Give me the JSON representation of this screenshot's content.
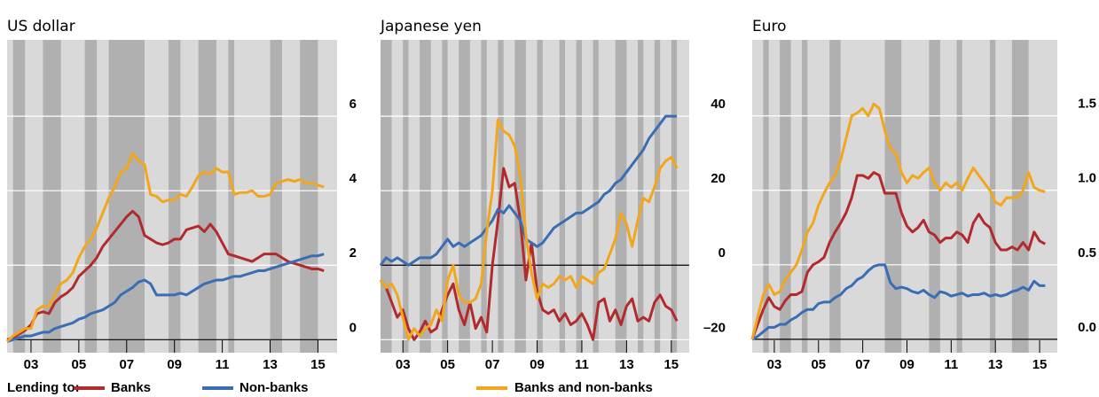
{
  "legend_title": "Lending to:",
  "chart_data": [
    {
      "type": "line",
      "title": "US dollar",
      "x": [
        2002,
        2002.25,
        2002.5,
        2002.75,
        2003,
        2003.25,
        2003.5,
        2003.75,
        2004,
        2004.25,
        2004.5,
        2004.75,
        2005,
        2005.25,
        2005.5,
        2005.75,
        2006,
        2006.25,
        2006.5,
        2006.75,
        2007,
        2007.25,
        2007.5,
        2007.75,
        2008,
        2008.25,
        2008.5,
        2008.75,
        2009,
        2009.25,
        2009.5,
        2009.75,
        2010,
        2010.25,
        2010.5,
        2010.75,
        2011,
        2011.25,
        2011.5,
        2011.75,
        2012,
        2012.25,
        2012.5,
        2012.75,
        2013,
        2013.25,
        2013.5,
        2013.75,
        2014,
        2014.25,
        2014.5,
        2014.75,
        2015,
        2015.25
      ],
      "series": [
        {
          "name": "Banks",
          "color": "#b22a2e",
          "values": [
            0,
            0.05,
            0.15,
            0.25,
            0.4,
            0.7,
            0.75,
            0.7,
            1.0,
            1.15,
            1.25,
            1.4,
            1.7,
            1.85,
            2.0,
            2.2,
            2.5,
            2.7,
            2.9,
            3.1,
            3.3,
            3.45,
            3.3,
            2.8,
            2.7,
            2.6,
            2.55,
            2.6,
            2.7,
            2.7,
            2.95,
            3.0,
            3.05,
            2.9,
            3.1,
            2.9,
            2.6,
            2.3,
            2.25,
            2.2,
            2.15,
            2.1,
            2.2,
            2.3,
            2.3,
            2.3,
            2.2,
            2.1,
            2.05,
            2.0,
            1.95,
            1.9,
            1.9,
            1.85
          ]
        },
        {
          "name": "Non-banks",
          "color": "#3a6db3",
          "values": [
            -0.05,
            0,
            0.05,
            0.1,
            0.1,
            0.15,
            0.2,
            0.2,
            0.3,
            0.35,
            0.4,
            0.45,
            0.55,
            0.6,
            0.7,
            0.75,
            0.8,
            0.9,
            1.0,
            1.2,
            1.3,
            1.4,
            1.55,
            1.6,
            1.5,
            1.2,
            1.2,
            1.2,
            1.2,
            1.25,
            1.2,
            1.3,
            1.4,
            1.5,
            1.55,
            1.6,
            1.6,
            1.65,
            1.7,
            1.7,
            1.75,
            1.8,
            1.85,
            1.85,
            1.9,
            1.95,
            2.0,
            2.05,
            2.1,
            2.15,
            2.2,
            2.25,
            2.25,
            2.3
          ]
        },
        {
          "name": "Banks and non-banks",
          "color": "#f2a61c",
          "values": [
            -0.05,
            0.1,
            0.2,
            0.3,
            0.3,
            0.8,
            0.9,
            0.9,
            1.2,
            1.5,
            1.6,
            1.8,
            2.2,
            2.5,
            2.7,
            3.0,
            3.4,
            3.8,
            4.1,
            4.5,
            4.6,
            5.0,
            4.8,
            4.7,
            3.9,
            3.85,
            3.7,
            3.75,
            3.75,
            3.9,
            3.85,
            4.1,
            4.4,
            4.5,
            4.45,
            4.6,
            4.5,
            4.5,
            3.9,
            3.95,
            3.95,
            4.0,
            3.85,
            3.85,
            3.9,
            4.2,
            4.25,
            4.3,
            4.25,
            4.3,
            4.2,
            4.2,
            4.15,
            4.1
          ]
        }
      ],
      "xlim": [
        2002,
        2015.8
      ],
      "xticks": [
        {
          "value": 2003,
          "label": "03"
        },
        {
          "value": 2005,
          "label": "05"
        },
        {
          "value": 2007,
          "label": "07"
        },
        {
          "value": 2009,
          "label": "09"
        },
        {
          "value": 2011,
          "label": "11"
        },
        {
          "value": 2013,
          "label": "13"
        },
        {
          "value": 2015,
          "label": "15"
        }
      ],
      "ylim": [
        -0.35,
        8.05
      ],
      "yticks": [
        0,
        2,
        4,
        6
      ],
      "grid": true,
      "shaded": [
        [
          2002.25,
          2002.75
        ],
        [
          2003.5,
          2004.25
        ],
        [
          2005.25,
          2005.75
        ],
        [
          2006.25,
          2007.75
        ],
        [
          2008.75,
          2009.25
        ],
        [
          2010,
          2010.75
        ],
        [
          2011.25,
          2011.5
        ],
        [
          2013,
          2013.5
        ],
        [
          2014.25,
          2015
        ]
      ]
    },
    {
      "type": "line",
      "title": "Japanese yen",
      "x": [
        2002,
        2002.25,
        2002.5,
        2002.75,
        2003,
        2003.25,
        2003.5,
        2003.75,
        2004,
        2004.25,
        2004.5,
        2004.75,
        2005,
        2005.25,
        2005.5,
        2005.75,
        2006,
        2006.25,
        2006.5,
        2006.75,
        2007,
        2007.25,
        2007.5,
        2007.75,
        2008,
        2008.25,
        2008.5,
        2008.75,
        2009,
        2009.25,
        2009.5,
        2009.75,
        2010,
        2010.25,
        2010.5,
        2010.75,
        2011,
        2011.25,
        2011.5,
        2011.75,
        2012,
        2012.25,
        2012.5,
        2012.75,
        2013,
        2013.25,
        2013.5,
        2013.75,
        2014,
        2014.25,
        2014.5,
        2014.75,
        2015,
        2015.25
      ],
      "series": [
        {
          "name": "Banks",
          "color": "#b22a2e",
          "values": [
            -4,
            -6,
            -10,
            -14,
            -12,
            -17,
            -20,
            -18,
            -15,
            -18,
            -17,
            -12,
            -8,
            -5,
            -12,
            -16,
            -10,
            -17,
            -14,
            -18,
            0,
            12,
            26,
            21,
            22,
            12,
            -4,
            6,
            -7,
            -12,
            -13,
            -12,
            -15,
            -13,
            -16,
            -15,
            -13,
            -16,
            -20,
            -10,
            -9,
            -15,
            -12,
            -16,
            -11,
            -9,
            -15,
            -14,
            -15,
            -10,
            -8,
            -11,
            -12,
            -15
          ]
        },
        {
          "name": "Non-banks",
          "color": "#3a6db3",
          "values": [
            0,
            2,
            1,
            2,
            1,
            0,
            1,
            2,
            2,
            2,
            3,
            5,
            7,
            5,
            6,
            5,
            6,
            7,
            8,
            10,
            12,
            15,
            14,
            16,
            14,
            12,
            7,
            6,
            5,
            6,
            8,
            10,
            11,
            12,
            13,
            14,
            14,
            15,
            16,
            17,
            19,
            20,
            22,
            23,
            25,
            27,
            29,
            31,
            34,
            36,
            38,
            40,
            40,
            40
          ]
        },
        {
          "name": "Banks and non-banks",
          "color": "#f2a61c",
          "values": [
            -4,
            -6,
            -5,
            -8,
            -14,
            -20,
            -17,
            -19,
            -17,
            -16,
            -12,
            -15,
            -4,
            0,
            -8,
            -10,
            -10,
            -9,
            -5,
            9,
            20,
            39,
            36,
            35,
            32,
            24,
            8,
            -2,
            -9,
            -5,
            -6,
            -5,
            -3,
            -4,
            -3,
            -6,
            -3,
            -4,
            -5,
            -2,
            -1,
            3,
            7,
            14,
            11,
            5,
            12,
            18,
            17,
            21,
            26,
            28,
            29,
            26
          ]
        }
      ],
      "xlim": [
        2002,
        2015.8
      ],
      "xticks": [
        {
          "value": 2003,
          "label": "03"
        },
        {
          "value": 2005,
          "label": "05"
        },
        {
          "value": 2007,
          "label": "07"
        },
        {
          "value": 2009,
          "label": "09"
        },
        {
          "value": 2011,
          "label": "11"
        },
        {
          "value": 2013,
          "label": "13"
        },
        {
          "value": 2015,
          "label": "15"
        }
      ],
      "ylim": [
        -23.5,
        60.5
      ],
      "yticks": [
        {
          "value": -20,
          "label": "–20"
        },
        0,
        20,
        40
      ],
      "grid": true,
      "shaded": [
        [
          2002,
          2002.5
        ],
        [
          2003,
          2003.25
        ],
        [
          2003.75,
          2004.25
        ],
        [
          2004.75,
          2005
        ],
        [
          2005.5,
          2006
        ],
        [
          2006.5,
          2006.75
        ],
        [
          2007.25,
          2007.5
        ],
        [
          2008,
          2008.5
        ],
        [
          2009,
          2009.25
        ],
        [
          2010,
          2010.25
        ],
        [
          2010.75,
          2011
        ],
        [
          2011.5,
          2011.75
        ],
        [
          2012.5,
          2013
        ],
        [
          2013.5,
          2013.75
        ],
        [
          2014.25,
          2014.5
        ],
        [
          2015,
          2015.25
        ]
      ]
    },
    {
      "type": "line",
      "title": "Euro",
      "x": [
        2002,
        2002.25,
        2002.5,
        2002.75,
        2003,
        2003.25,
        2003.5,
        2003.75,
        2004,
        2004.25,
        2004.5,
        2004.75,
        2005,
        2005.25,
        2005.5,
        2005.75,
        2006,
        2006.25,
        2006.5,
        2006.75,
        2007,
        2007.25,
        2007.5,
        2007.75,
        2008,
        2008.25,
        2008.5,
        2008.75,
        2009,
        2009.25,
        2009.5,
        2009.75,
        2010,
        2010.25,
        2010.5,
        2010.75,
        2011,
        2011.25,
        2011.5,
        2011.75,
        2012,
        2012.25,
        2012.5,
        2012.75,
        2013,
        2013.25,
        2013.5,
        2013.75,
        2014,
        2014.25,
        2014.5,
        2014.75,
        2015,
        2015.25
      ],
      "series": [
        {
          "name": "Banks",
          "color": "#b22a2e",
          "values": [
            0,
            0.1,
            0.2,
            0.28,
            0.22,
            0.2,
            0.26,
            0.3,
            0.3,
            0.32,
            0.45,
            0.5,
            0.52,
            0.55,
            0.65,
            0.72,
            0.78,
            0.85,
            0.95,
            1.1,
            1.1,
            1.08,
            1.12,
            1.1,
            0.98,
            0.98,
            0.98,
            0.85,
            0.76,
            0.72,
            0.75,
            0.8,
            0.72,
            0.7,
            0.65,
            0.68,
            0.68,
            0.72,
            0.7,
            0.65,
            0.78,
            0.84,
            0.78,
            0.75,
            0.65,
            0.6,
            0.6,
            0.62,
            0.6,
            0.65,
            0.6,
            0.72,
            0.66,
            0.64
          ]
        },
        {
          "name": "Non-banks",
          "color": "#3a6db3",
          "values": [
            0,
            0.02,
            0.05,
            0.08,
            0.08,
            0.1,
            0.1,
            0.13,
            0.15,
            0.18,
            0.2,
            0.2,
            0.24,
            0.25,
            0.25,
            0.28,
            0.3,
            0.34,
            0.36,
            0.4,
            0.42,
            0.46,
            0.49,
            0.5,
            0.5,
            0.38,
            0.34,
            0.35,
            0.34,
            0.32,
            0.31,
            0.33,
            0.3,
            0.28,
            0.32,
            0.31,
            0.29,
            0.3,
            0.31,
            0.29,
            0.3,
            0.3,
            0.31,
            0.29,
            0.3,
            0.29,
            0.3,
            0.32,
            0.33,
            0.35,
            0.33,
            0.39,
            0.36,
            0.36
          ]
        },
        {
          "name": "Banks and non-banks",
          "color": "#f2a61c",
          "values": [
            0,
            0.15,
            0.3,
            0.37,
            0.3,
            0.32,
            0.4,
            0.45,
            0.5,
            0.6,
            0.72,
            0.78,
            0.9,
            0.98,
            1.05,
            1.1,
            1.2,
            1.35,
            1.5,
            1.52,
            1.55,
            1.5,
            1.58,
            1.55,
            1.4,
            1.28,
            1.25,
            1.12,
            1.05,
            1.1,
            1.08,
            1.12,
            1.15,
            1.05,
            1.0,
            1.05,
            1.02,
            1.05,
            1.0,
            1.08,
            1.15,
            1.1,
            1.05,
            1.0,
            0.92,
            0.9,
            0.95,
            0.95,
            0.95,
            1.0,
            1.12,
            1.02,
            1.0,
            0.99
          ]
        }
      ],
      "xlim": [
        2002,
        2015.8
      ],
      "xticks": [
        {
          "value": 2003,
          "label": "03"
        },
        {
          "value": 2005,
          "label": "05"
        },
        {
          "value": 2007,
          "label": "07"
        },
        {
          "value": 2009,
          "label": "09"
        },
        {
          "value": 2011,
          "label": "11"
        },
        {
          "value": 2013,
          "label": "13"
        },
        {
          "value": 2015,
          "label": "15"
        }
      ],
      "ylim": [
        -0.09,
        2.01
      ],
      "yticks": [
        {
          "value": 0,
          "label": "0.0"
        },
        0.5,
        {
          "value": 1,
          "label": "1.0"
        },
        1.5
      ],
      "grid": true,
      "shaded": [
        [
          2002.5,
          2002.75
        ],
        [
          2003.25,
          2003.75
        ],
        [
          2004.25,
          2004.5
        ],
        [
          2005.5,
          2006
        ],
        [
          2008,
          2008.75
        ],
        [
          2010,
          2010.5
        ],
        [
          2011.25,
          2011.5
        ],
        [
          2012.75,
          2013
        ],
        [
          2013.75,
          2014.5
        ]
      ]
    }
  ]
}
